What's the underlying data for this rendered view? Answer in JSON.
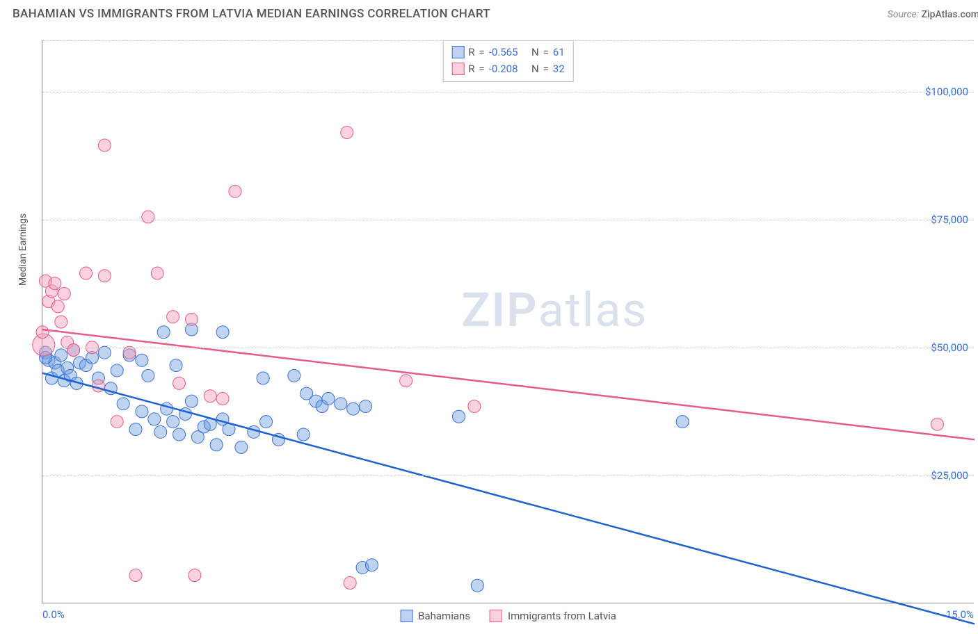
{
  "title": "BAHAMIAN VS IMMIGRANTS FROM LATVIA MEDIAN EARNINGS CORRELATION CHART",
  "source_prefix": "Source: ",
  "source_name": "ZipAtlas.com",
  "watermark_a": "ZIP",
  "watermark_b": "atlas",
  "ylabel": "Median Earnings",
  "chart": {
    "type": "scatter",
    "xlim": [
      0,
      15
    ],
    "ylim": [
      0,
      110000
    ],
    "x_ticks": [
      {
        "v": 0,
        "label": "0.0%"
      },
      {
        "v": 15,
        "label": "15.0%"
      }
    ],
    "y_ticks": [
      {
        "v": 25000,
        "label": "$25,000"
      },
      {
        "v": 50000,
        "label": "$50,000"
      },
      {
        "v": 75000,
        "label": "$75,000"
      },
      {
        "v": 100000,
        "label": "$100,000"
      }
    ],
    "grid_color": "#cccccc",
    "background_color": "#ffffff",
    "axis_color": "#888888",
    "marker_radius": 9,
    "large_marker_radius": 16,
    "series": [
      {
        "id": "bahamians",
        "label": "Bahamians",
        "fill": "rgba(110,160,225,0.45)",
        "stroke": "#3b6fd8",
        "R": "-0.565",
        "N": "61",
        "trend": {
          "x1": 0,
          "y1": 45000,
          "x2": 15,
          "y2": -4000,
          "color": "#1e62d0",
          "width": 2.5
        },
        "points": [
          [
            0.05,
            49000
          ],
          [
            0.1,
            47500
          ],
          [
            0.15,
            44000
          ],
          [
            0.2,
            47000
          ],
          [
            0.25,
            45500
          ],
          [
            0.3,
            48500
          ],
          [
            0.35,
            43500
          ],
          [
            0.4,
            46000
          ],
          [
            0.45,
            44500
          ],
          [
            0.5,
            49500
          ],
          [
            0.55,
            43000
          ],
          [
            0.6,
            47000
          ],
          [
            0.7,
            46500
          ],
          [
            0.8,
            48000
          ],
          [
            0.9,
            44000
          ],
          [
            1.0,
            49000
          ],
          [
            1.1,
            42000
          ],
          [
            1.2,
            45500
          ],
          [
            1.3,
            39000
          ],
          [
            1.4,
            48500
          ],
          [
            1.5,
            34000
          ],
          [
            1.6,
            37500
          ],
          [
            1.6,
            47500
          ],
          [
            1.7,
            44500
          ],
          [
            1.8,
            36000
          ],
          [
            1.9,
            33500
          ],
          [
            1.95,
            53000
          ],
          [
            2.0,
            38000
          ],
          [
            2.1,
            35500
          ],
          [
            2.15,
            46500
          ],
          [
            2.2,
            33000
          ],
          [
            2.3,
            37000
          ],
          [
            2.4,
            39500
          ],
          [
            2.4,
            53500
          ],
          [
            2.5,
            32500
          ],
          [
            2.6,
            34500
          ],
          [
            2.7,
            35000
          ],
          [
            2.8,
            31000
          ],
          [
            2.9,
            36000
          ],
          [
            2.9,
            53000
          ],
          [
            3.0,
            34000
          ],
          [
            3.2,
            30500
          ],
          [
            3.4,
            33500
          ],
          [
            3.55,
            44000
          ],
          [
            3.6,
            35500
          ],
          [
            3.8,
            32000
          ],
          [
            4.05,
            44500
          ],
          [
            4.2,
            33000
          ],
          [
            4.25,
            41000
          ],
          [
            4.4,
            39500
          ],
          [
            4.5,
            38500
          ],
          [
            4.6,
            40000
          ],
          [
            4.8,
            39000
          ],
          [
            5.0,
            38000
          ],
          [
            5.2,
            38500
          ],
          [
            5.15,
            7000
          ],
          [
            5.3,
            7500
          ],
          [
            6.7,
            36500
          ],
          [
            7.0,
            3500
          ],
          [
            10.3,
            35500
          ],
          [
            0.05,
            48000
          ]
        ]
      },
      {
        "id": "latvia",
        "label": "Immigrants from Latvia",
        "fill": "rgba(245,155,185,0.45)",
        "stroke": "#e85a8a",
        "R": "-0.208",
        "N": "32",
        "trend": {
          "x1": 0,
          "y1": 53500,
          "x2": 15,
          "y2": 32000,
          "color": "#e85a8a",
          "width": 2.5
        },
        "points": [
          [
            0.05,
            63000
          ],
          [
            0.1,
            59000
          ],
          [
            0.15,
            61000
          ],
          [
            0.2,
            62500
          ],
          [
            0.25,
            58000
          ],
          [
            0.3,
            55000
          ],
          [
            0.35,
            60500
          ],
          [
            0.4,
            51000
          ],
          [
            0.5,
            49500
          ],
          [
            0.7,
            64500
          ],
          [
            0.8,
            50000
          ],
          [
            0.9,
            42500
          ],
          [
            1.0,
            64000
          ],
          [
            1.0,
            89500
          ],
          [
            1.2,
            35500
          ],
          [
            1.4,
            49000
          ],
          [
            1.5,
            5500
          ],
          [
            1.7,
            75500
          ],
          [
            1.85,
            64500
          ],
          [
            2.1,
            56000
          ],
          [
            2.2,
            43000
          ],
          [
            2.4,
            55500
          ],
          [
            2.45,
            5500
          ],
          [
            2.7,
            40500
          ],
          [
            2.9,
            40000
          ],
          [
            3.1,
            80500
          ],
          [
            4.9,
            92000
          ],
          [
            4.95,
            4000
          ],
          [
            5.85,
            43500
          ],
          [
            6.95,
            38500
          ],
          [
            14.4,
            35000
          ],
          [
            0.0,
            53000
          ]
        ],
        "big_points": [
          [
            0.02,
            50500
          ]
        ]
      }
    ],
    "stats_labels": {
      "R": "R",
      "equals": "=",
      "N": "N"
    },
    "legend_position": "bottom"
  }
}
